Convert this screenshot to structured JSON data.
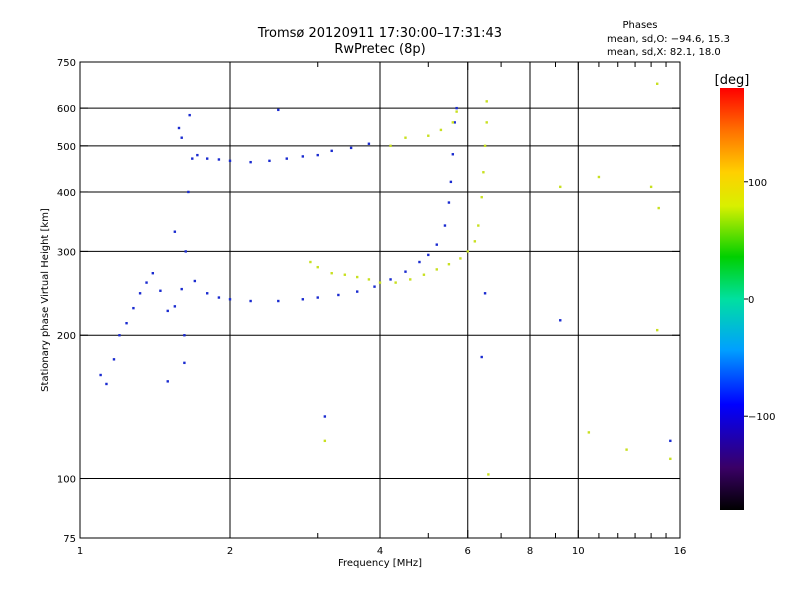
{
  "header": {
    "title": "Tromsø 20120911 17:30:00–17:31:43",
    "subtitle": "RwPretec (8p)",
    "phases_label": "Phases",
    "stats_o": "mean, sd,O: −94.6, 15.3",
    "stats_x": "mean, sd,X:  82.1, 18.0"
  },
  "colors": {
    "background": "#ffffff",
    "axes": "#000000",
    "o_mode": "#1a2bd0",
    "x_mode": "#c8e020"
  },
  "colorbar": {
    "unit_label": "[deg]",
    "range": [
      -180,
      180
    ],
    "ticks": [
      100,
      0,
      -100
    ],
    "tick_labels": [
      "100",
      "0",
      "−100"
    ]
  },
  "chart_data": {
    "type": "scatter",
    "xlabel": "Frequency [MHz]",
    "ylabel": "Stationary phase Virtual Height [km]",
    "xscale": "log",
    "yscale": "log",
    "xlim": [
      1,
      16
    ],
    "ylim": [
      75,
      750
    ],
    "x_ticks": [
      1,
      2,
      4,
      6,
      8,
      10,
      16
    ],
    "x_tick_labels": [
      "1",
      "2",
      "4",
      "6",
      "8",
      "10",
      "16"
    ],
    "x_minor_ticks": [
      3,
      5,
      7,
      9,
      11,
      12,
      13,
      14,
      15
    ],
    "y_ticks": [
      75,
      100,
      200,
      300,
      400,
      500,
      600,
      750
    ],
    "y_tick_labels": [
      "75",
      "100",
      "200",
      "300",
      "400",
      "500",
      "600",
      "750"
    ],
    "grid": true,
    "series": [
      {
        "mode": "O",
        "phase_mean": -94.6,
        "phase_sd": 15.3,
        "points": [
          [
            1.1,
            165
          ],
          [
            1.13,
            158
          ],
          [
            1.17,
            178
          ],
          [
            1.2,
            200
          ],
          [
            1.24,
            212
          ],
          [
            1.28,
            228
          ],
          [
            1.32,
            245
          ],
          [
            1.36,
            258
          ],
          [
            1.4,
            270
          ],
          [
            1.45,
            248
          ],
          [
            1.5,
            225
          ],
          [
            1.55,
            230
          ],
          [
            1.6,
            250
          ],
          [
            1.63,
            300
          ],
          [
            1.65,
            400
          ],
          [
            1.68,
            470
          ],
          [
            1.72,
            478
          ],
          [
            1.8,
            470
          ],
          [
            1.9,
            468
          ],
          [
            2.0,
            465
          ],
          [
            2.2,
            462
          ],
          [
            2.4,
            465
          ],
          [
            2.6,
            470
          ],
          [
            2.8,
            475
          ],
          [
            3.0,
            478
          ],
          [
            3.2,
            488
          ],
          [
            3.5,
            495
          ],
          [
            3.8,
            505
          ],
          [
            1.7,
            260
          ],
          [
            1.8,
            245
          ],
          [
            1.9,
            240
          ],
          [
            2.0,
            238
          ],
          [
            2.2,
            236
          ],
          [
            2.5,
            236
          ],
          [
            2.8,
            238
          ],
          [
            3.0,
            240
          ],
          [
            3.3,
            243
          ],
          [
            3.6,
            247
          ],
          [
            3.9,
            253
          ],
          [
            4.2,
            262
          ],
          [
            4.5,
            272
          ],
          [
            4.8,
            285
          ],
          [
            5.0,
            295
          ],
          [
            5.2,
            310
          ],
          [
            5.4,
            340
          ],
          [
            5.5,
            380
          ],
          [
            5.55,
            420
          ],
          [
            5.6,
            480
          ],
          [
            5.65,
            560
          ],
          [
            5.7,
            600
          ],
          [
            1.62,
            200
          ],
          [
            1.62,
            175
          ],
          [
            1.6,
            520
          ],
          [
            1.66,
            580
          ],
          [
            1.58,
            545
          ],
          [
            1.5,
            160
          ],
          [
            1.55,
            330
          ],
          [
            2.5,
            595
          ],
          [
            3.1,
            135
          ],
          [
            9.2,
            215
          ],
          [
            6.5,
            245
          ],
          [
            6.4,
            180
          ],
          [
            15.3,
            120
          ]
        ]
      },
      {
        "mode": "X",
        "phase_mean": 82.1,
        "phase_sd": 18.0,
        "points": [
          [
            2.9,
            285
          ],
          [
            3.0,
            278
          ],
          [
            3.2,
            270
          ],
          [
            3.4,
            268
          ],
          [
            3.6,
            265
          ],
          [
            3.8,
            262
          ],
          [
            4.0,
            258
          ],
          [
            4.3,
            258
          ],
          [
            4.6,
            262
          ],
          [
            4.9,
            268
          ],
          [
            5.2,
            275
          ],
          [
            5.5,
            282
          ],
          [
            5.8,
            290
          ],
          [
            6.0,
            300
          ],
          [
            6.2,
            315
          ],
          [
            6.3,
            340
          ],
          [
            6.4,
            390
          ],
          [
            6.45,
            440
          ],
          [
            6.5,
            500
          ],
          [
            6.55,
            560
          ],
          [
            6.55,
            620
          ],
          [
            4.5,
            520
          ],
          [
            5.0,
            525
          ],
          [
            5.3,
            540
          ],
          [
            5.6,
            560
          ],
          [
            5.7,
            590
          ],
          [
            4.2,
            500
          ],
          [
            3.1,
            120
          ],
          [
            6.6,
            102
          ],
          [
            12.5,
            115
          ],
          [
            11.0,
            430
          ],
          [
            14.0,
            410
          ],
          [
            10.5,
            125
          ],
          [
            9.2,
            410
          ],
          [
            14.4,
            205
          ],
          [
            14.5,
            370
          ],
          [
            14.4,
            675
          ],
          [
            15.3,
            110
          ]
        ]
      }
    ]
  }
}
